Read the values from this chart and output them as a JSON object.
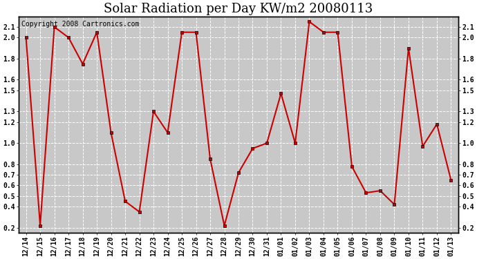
{
  "title": "Solar Radiation per Day KW/m2 20080113",
  "copyright_text": "Copyright 2008 Cartronics.com",
  "dates": [
    "12/14",
    "12/15",
    "12/16",
    "12/17",
    "12/18",
    "12/19",
    "12/20",
    "12/21",
    "12/22",
    "12/23",
    "12/24",
    "12/25",
    "12/26",
    "12/27",
    "12/28",
    "12/29",
    "12/30",
    "12/31",
    "01/01",
    "01/02",
    "01/03",
    "01/04",
    "01/05",
    "01/06",
    "01/07",
    "01/08",
    "01/09",
    "01/10",
    "01/11",
    "01/12",
    "01/13"
  ],
  "values": [
    2.0,
    0.22,
    2.1,
    2.0,
    1.75,
    2.05,
    1.1,
    0.45,
    0.35,
    1.3,
    1.1,
    2.05,
    2.05,
    0.85,
    0.22,
    0.72,
    0.95,
    1.0,
    1.47,
    1.0,
    2.15,
    2.05,
    2.05,
    0.78,
    0.53,
    0.55,
    0.42,
    1.9,
    0.97,
    1.18,
    0.65
  ],
  "yticks": [
    0.2,
    0.4,
    0.5,
    0.6,
    0.7,
    0.8,
    1.0,
    1.2,
    1.3,
    1.5,
    1.6,
    1.8,
    2.0,
    2.1
  ],
  "ytick_labels": [
    "0.2",
    "0.4",
    "0.5",
    "0.6",
    "0.7",
    "0.8",
    "1.0",
    "1.2",
    "1.3",
    "1.5",
    "1.6",
    "1.8",
    "2.0",
    "2.1"
  ],
  "ylim": [
    0.15,
    2.2
  ],
  "line_color": "#cc0000",
  "marker_color": "#cc0000",
  "outer_bg_color": "#ffffff",
  "plot_bg_color": "#c8c8c8",
  "grid_color": "#ffffff",
  "title_fontsize": 13,
  "copyright_fontsize": 7,
  "tick_fontsize": 7
}
